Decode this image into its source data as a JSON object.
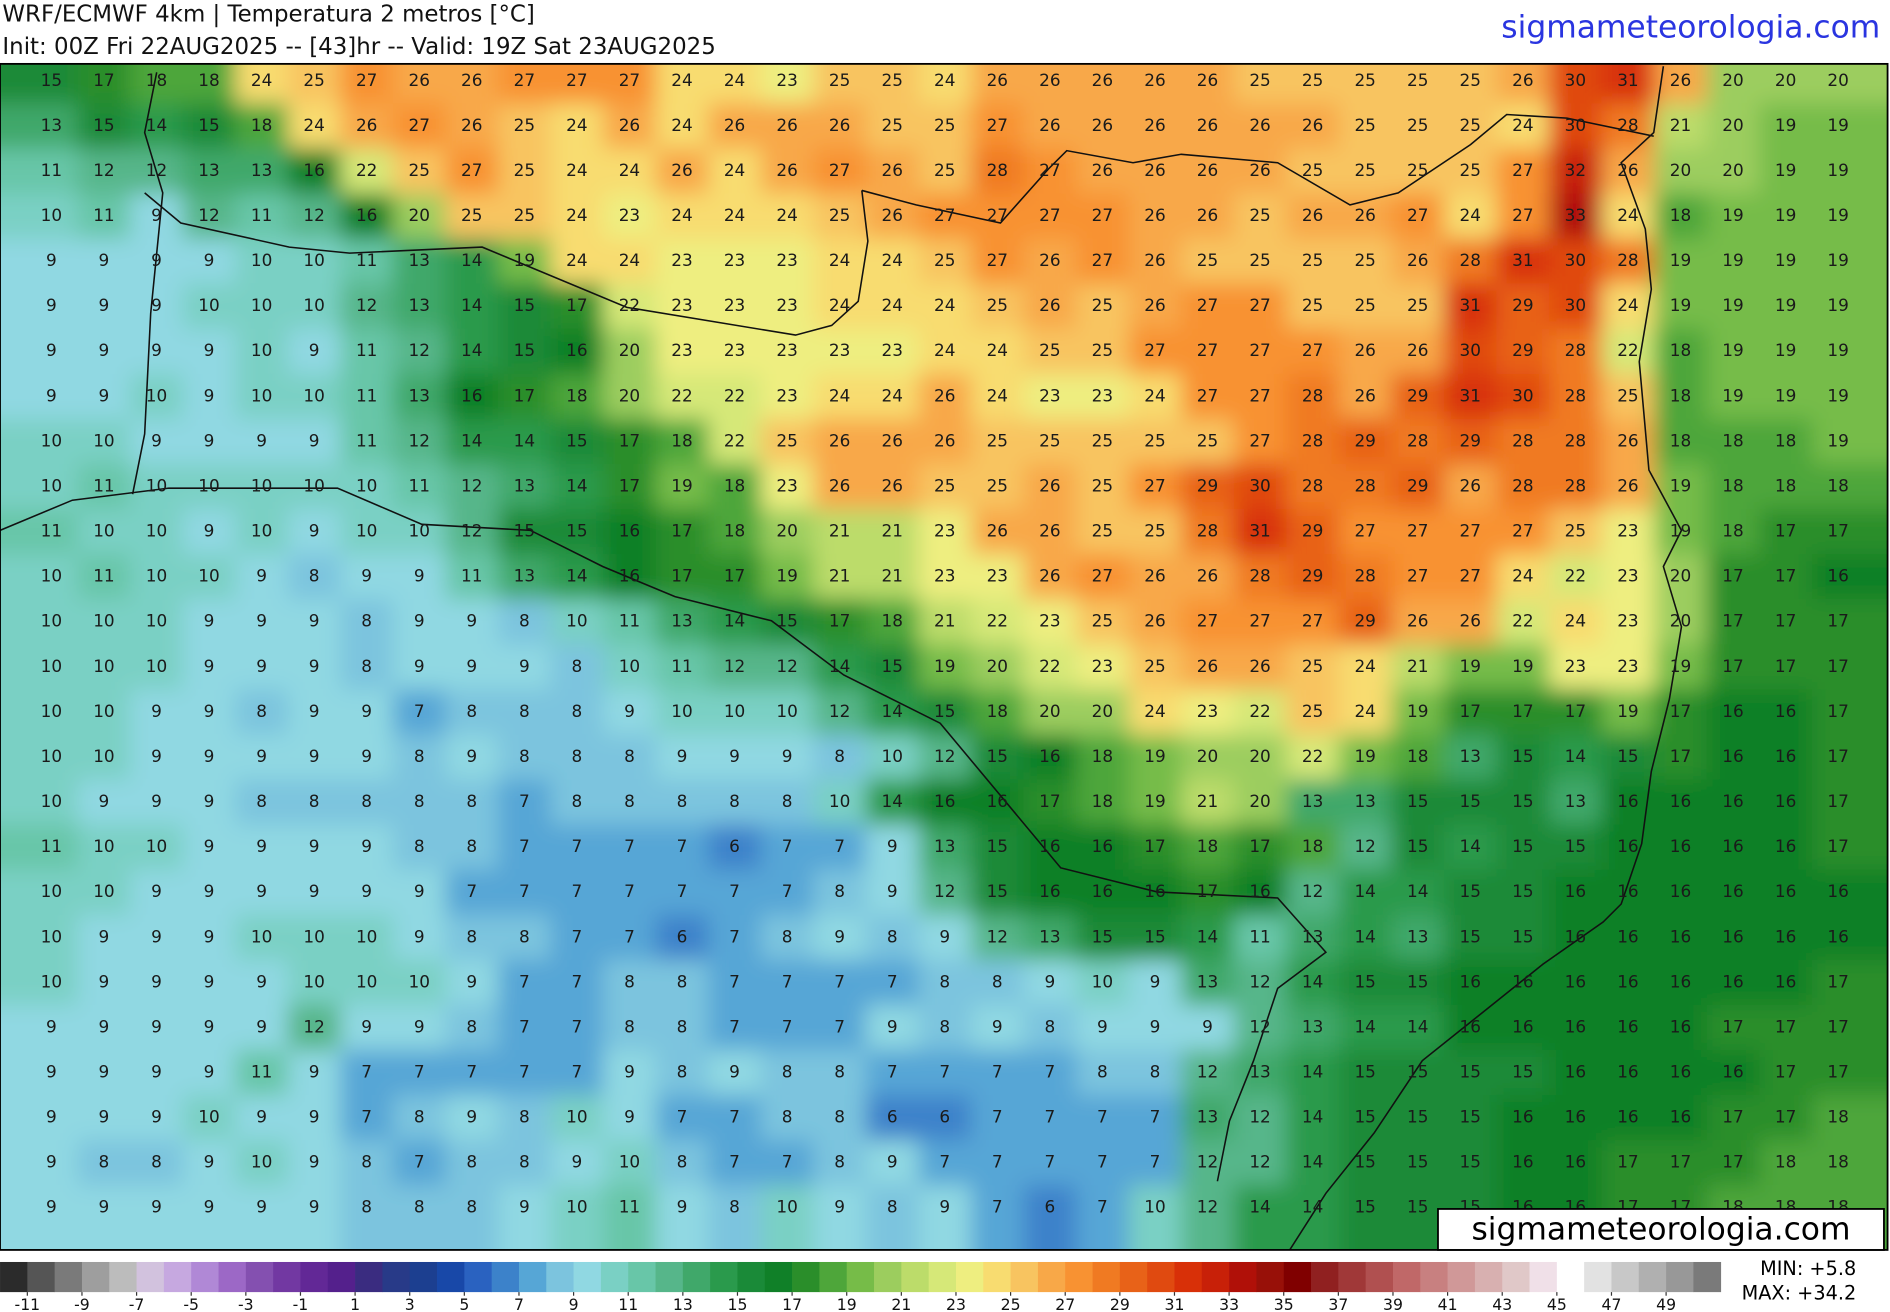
{
  "header": {
    "title": "WRF/ECMWF 4km | Temperatura 2 metros [°C]",
    "subtitle": "Init: 00Z Fri 22AUG2025 -- [43]hr -- Valid: 19Z Sat 23AUG2025",
    "site": "sigmameteorologia.com"
  },
  "grid": {
    "rows": [
      [
        15,
        17,
        18,
        18,
        24,
        25,
        27,
        26,
        26,
        27,
        27,
        27,
        24,
        24,
        23,
        25,
        25,
        24,
        26,
        26,
        26,
        26,
        26,
        25,
        25,
        25,
        25,
        25,
        26,
        30,
        31,
        26,
        20,
        20,
        20
      ],
      [
        13,
        15,
        14,
        15,
        18,
        24,
        26,
        27,
        26,
        25,
        24,
        26,
        24,
        26,
        26,
        26,
        25,
        25,
        27,
        26,
        26,
        26,
        26,
        26,
        26,
        25,
        25,
        25,
        24,
        30,
        28,
        21,
        20,
        19,
        19
      ],
      [
        11,
        12,
        12,
        13,
        13,
        16,
        22,
        25,
        27,
        25,
        24,
        24,
        26,
        24,
        26,
        27,
        26,
        25,
        28,
        27,
        26,
        26,
        26,
        26,
        25,
        25,
        25,
        25,
        27,
        32,
        26,
        20,
        20,
        19,
        19
      ],
      [
        10,
        11,
        9,
        12,
        11,
        12,
        16,
        20,
        25,
        25,
        24,
        23,
        24,
        24,
        24,
        25,
        26,
        27,
        27,
        27,
        27,
        26,
        26,
        25,
        26,
        26,
        27,
        24,
        27,
        33,
        24,
        18,
        19,
        19,
        19
      ],
      [
        9,
        9,
        9,
        9,
        10,
        10,
        11,
        13,
        14,
        19,
        24,
        24,
        23,
        23,
        23,
        24,
        24,
        25,
        27,
        26,
        27,
        26,
        25,
        25,
        25,
        25,
        26,
        28,
        31,
        30,
        28,
        19,
        19,
        19,
        19
      ],
      [
        9,
        9,
        9,
        10,
        10,
        10,
        12,
        13,
        14,
        15,
        17,
        22,
        23,
        23,
        23,
        24,
        24,
        24,
        25,
        26,
        25,
        26,
        27,
        27,
        25,
        25,
        25,
        31,
        29,
        30,
        24,
        19,
        19,
        19,
        19
      ],
      [
        9,
        9,
        9,
        9,
        10,
        9,
        11,
        12,
        14,
        15,
        16,
        20,
        23,
        23,
        23,
        23,
        23,
        24,
        24,
        25,
        25,
        27,
        27,
        27,
        27,
        26,
        26,
        30,
        29,
        28,
        22,
        18,
        19,
        19,
        19
      ],
      [
        9,
        9,
        10,
        9,
        10,
        10,
        11,
        13,
        16,
        17,
        18,
        20,
        22,
        22,
        23,
        24,
        24,
        26,
        24,
        23,
        23,
        24,
        27,
        27,
        28,
        26,
        29,
        31,
        30,
        28,
        25,
        18,
        19,
        19,
        19
      ],
      [
        10,
        10,
        9,
        9,
        9,
        9,
        11,
        12,
        14,
        14,
        15,
        17,
        18,
        22,
        25,
        26,
        26,
        26,
        25,
        25,
        25,
        25,
        25,
        27,
        28,
        29,
        28,
        29,
        28,
        28,
        26,
        18,
        18,
        18,
        19
      ],
      [
        10,
        11,
        10,
        10,
        10,
        10,
        10,
        11,
        12,
        13,
        14,
        17,
        19,
        18,
        23,
        26,
        26,
        25,
        25,
        26,
        25,
        27,
        29,
        30,
        28,
        28,
        29,
        26,
        28,
        28,
        26,
        19,
        18,
        18,
        18
      ],
      [
        11,
        10,
        10,
        9,
        10,
        9,
        10,
        10,
        12,
        15,
        15,
        16,
        17,
        18,
        20,
        21,
        21,
        23,
        26,
        26,
        25,
        25,
        28,
        31,
        29,
        27,
        27,
        27,
        27,
        25,
        23,
        19,
        18,
        17,
        17
      ],
      [
        10,
        11,
        10,
        10,
        9,
        8,
        9,
        9,
        11,
        13,
        14,
        16,
        17,
        17,
        19,
        21,
        21,
        23,
        23,
        26,
        27,
        26,
        26,
        28,
        29,
        28,
        27,
        27,
        24,
        22,
        23,
        20,
        17,
        17,
        16
      ],
      [
        10,
        10,
        10,
        9,
        9,
        9,
        8,
        9,
        9,
        8,
        10,
        11,
        13,
        14,
        15,
        17,
        18,
        21,
        22,
        23,
        25,
        26,
        27,
        27,
        27,
        29,
        26,
        26,
        22,
        24,
        23,
        20,
        17,
        17,
        17
      ],
      [
        10,
        10,
        10,
        9,
        9,
        9,
        8,
        9,
        9,
        9,
        8,
        10,
        11,
        12,
        12,
        14,
        15,
        19,
        20,
        22,
        23,
        25,
        26,
        26,
        25,
        24,
        21,
        19,
        19,
        23,
        23,
        19,
        17,
        17,
        17
      ],
      [
        10,
        10,
        9,
        9,
        8,
        9,
        9,
        7,
        8,
        8,
        8,
        9,
        10,
        10,
        10,
        12,
        14,
        15,
        18,
        20,
        20,
        24,
        23,
        22,
        25,
        24,
        19,
        17,
        17,
        17,
        19,
        17,
        16,
        16,
        17
      ],
      [
        10,
        10,
        9,
        9,
        9,
        9,
        9,
        8,
        9,
        8,
        8,
        8,
        9,
        9,
        9,
        8,
        10,
        12,
        15,
        16,
        18,
        19,
        20,
        20,
        22,
        19,
        18,
        13,
        15,
        14,
        15,
        17,
        16,
        16,
        17
      ],
      [
        10,
        9,
        9,
        9,
        8,
        8,
        8,
        8,
        8,
        7,
        8,
        8,
        8,
        8,
        8,
        10,
        14,
        16,
        16,
        17,
        18,
        19,
        21,
        20,
        13,
        13,
        15,
        15,
        15,
        13,
        16,
        16,
        16,
        16,
        17
      ],
      [
        11,
        10,
        10,
        9,
        9,
        9,
        9,
        8,
        8,
        7,
        7,
        7,
        7,
        6,
        7,
        7,
        9,
        13,
        15,
        16,
        16,
        17,
        18,
        17,
        18,
        12,
        15,
        14,
        15,
        15,
        16,
        16,
        16,
        16,
        17
      ],
      [
        10,
        10,
        9,
        9,
        9,
        9,
        9,
        9,
        7,
        7,
        7,
        7,
        7,
        7,
        7,
        8,
        9,
        12,
        15,
        16,
        16,
        16,
        17,
        16,
        12,
        14,
        14,
        15,
        15,
        16,
        16,
        16,
        16,
        16,
        16
      ],
      [
        10,
        9,
        9,
        9,
        10,
        10,
        10,
        9,
        8,
        8,
        7,
        7,
        6,
        7,
        8,
        9,
        8,
        9,
        12,
        13,
        15,
        15,
        14,
        11,
        13,
        14,
        13,
        15,
        15,
        16,
        16,
        16,
        16,
        16,
        16
      ],
      [
        10,
        9,
        9,
        9,
        9,
        10,
        10,
        10,
        9,
        7,
        7,
        8,
        8,
        7,
        7,
        7,
        7,
        8,
        8,
        9,
        10,
        9,
        13,
        12,
        14,
        15,
        15,
        16,
        16,
        16,
        16,
        16,
        16,
        16,
        17
      ],
      [
        9,
        9,
        9,
        9,
        9,
        12,
        9,
        9,
        8,
        7,
        7,
        8,
        8,
        7,
        7,
        7,
        9,
        8,
        9,
        8,
        9,
        9,
        9,
        12,
        13,
        14,
        14,
        16,
        16,
        16,
        16,
        16,
        17,
        17,
        17
      ],
      [
        9,
        9,
        9,
        9,
        11,
        9,
        7,
        7,
        7,
        7,
        7,
        9,
        8,
        9,
        8,
        8,
        7,
        7,
        7,
        7,
        8,
        8,
        12,
        13,
        14,
        15,
        15,
        15,
        15,
        16,
        16,
        16,
        16,
        17,
        17
      ],
      [
        9,
        9,
        9,
        10,
        9,
        9,
        7,
        8,
        9,
        8,
        10,
        9,
        7,
        7,
        8,
        8,
        6,
        6,
        7,
        7,
        7,
        7,
        13,
        12,
        14,
        15,
        15,
        15,
        16,
        16,
        16,
        16,
        17,
        17,
        18
      ],
      [
        9,
        8,
        8,
        9,
        10,
        9,
        8,
        7,
        8,
        8,
        9,
        10,
        8,
        7,
        7,
        8,
        9,
        7,
        7,
        7,
        7,
        7,
        12,
        12,
        14,
        15,
        15,
        15,
        16,
        16,
        17,
        17,
        17,
        18,
        18
      ],
      [
        9,
        9,
        9,
        9,
        9,
        9,
        8,
        8,
        8,
        9,
        10,
        11,
        9,
        8,
        10,
        9,
        8,
        9,
        7,
        6,
        7,
        10,
        12,
        14,
        14,
        15,
        15,
        15,
        16,
        16,
        17,
        17,
        18,
        18,
        18
      ]
    ]
  },
  "colorbar": {
    "colors": [
      "#2b2b2b",
      "#555555",
      "#7a7a7a",
      "#9e9e9e",
      "#bcbcbc",
      "#d2c2de",
      "#c6a8e0",
      "#b088d6",
      "#9c68c6",
      "#8450b0",
      "#7238a2",
      "#622896",
      "#54208c",
      "#3a2c80",
      "#283a88",
      "#1c3f90",
      "#1848a8",
      "#2a62c0",
      "#3c82ca",
      "#56a6d6",
      "#7cc4de",
      "#90d8e2",
      "#7ad0c4",
      "#68c6a8",
      "#56b68a",
      "#40a86a",
      "#2a9a4c",
      "#1a8a38",
      "#108028",
      "#2a8e2a",
      "#4ea63a",
      "#76bc48",
      "#9ccd5e",
      "#bcdc6a",
      "#d6e878",
      "#eeee80",
      "#f8dc70",
      "#f8c460",
      "#f8a848",
      "#f89232",
      "#f07a22",
      "#e86218",
      "#e04a10",
      "#d83008",
      "#c82008",
      "#b01008",
      "#981008",
      "#800000",
      "#902020",
      "#a03838",
      "#b05050",
      "#c06868",
      "#c88080",
      "#d09898",
      "#d8b0b0",
      "#e0c8c8",
      "#f0e0e8",
      "#ffffff",
      "#e2e2e2",
      "#c8c8c8",
      "#b0b0b0",
      "#989898",
      "#7a7a7a"
    ],
    "labels": [
      -11,
      -9,
      -7,
      -5,
      -3,
      -1,
      1,
      3,
      5,
      7,
      9,
      11,
      13,
      15,
      17,
      19,
      21,
      23,
      25,
      27,
      29,
      31,
      33,
      35,
      37,
      39,
      41,
      43,
      45,
      47,
      49
    ]
  },
  "stats": {
    "min": "MIN: +5.8",
    "max": "MAX: +34.2"
  },
  "watermark": "sigmameteorologia.com"
}
